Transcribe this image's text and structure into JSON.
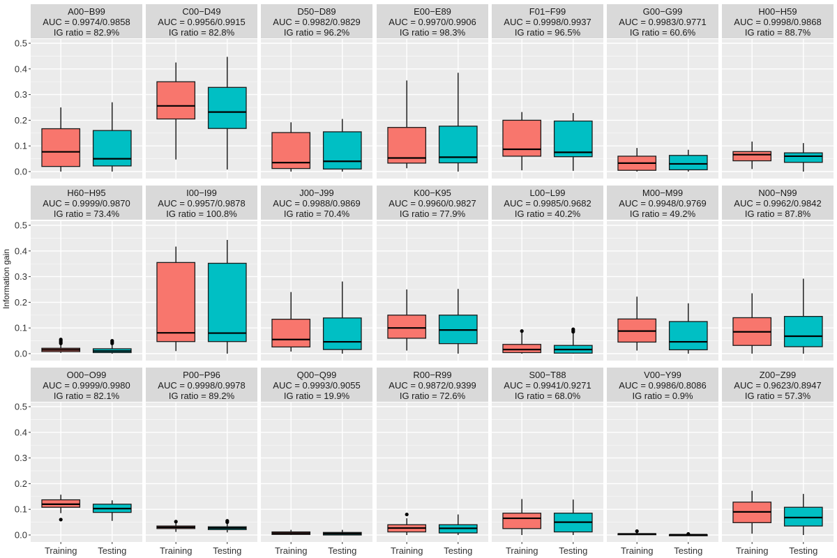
{
  "chart_data": {
    "type": "boxplot",
    "title": "",
    "xlabel": "",
    "ylabel": "Information gain",
    "ylim": [
      0,
      0.5
    ],
    "yticks": [
      "0.0",
      "0.1",
      "0.2",
      "0.3",
      "0.4",
      "0.5"
    ],
    "ytick_values": [
      0,
      0.1,
      0.2,
      0.3,
      0.4,
      0.5
    ],
    "categories": [
      "Training",
      "Testing"
    ],
    "colors": {
      "Training": "#F8766D",
      "Testing": "#00BFC4",
      "panel_bg": "#EBEBEB",
      "strip_bg": "#D9D9D9",
      "grid": "#FFFFFF"
    },
    "grid": true,
    "layout": {
      "rows": 3,
      "cols": 7
    },
    "panels": [
      {
        "name": "A00−B99",
        "auc": "AUC = 0.9974/0.9858",
        "ig": "IG ratio = 82.9%",
        "boxes": [
          {
            "min": 0.0,
            "q1": 0.02,
            "median": 0.077,
            "q3": 0.167,
            "max": 0.25,
            "outliers": []
          },
          {
            "min": 0.0,
            "q1": 0.022,
            "median": 0.05,
            "q3": 0.16,
            "max": 0.27,
            "outliers": []
          }
        ]
      },
      {
        "name": "C00−D49",
        "auc": "AUC = 0.9956/0.9915",
        "ig": "IG ratio = 82.8%",
        "boxes": [
          {
            "min": 0.047,
            "q1": 0.205,
            "median": 0.256,
            "q3": 0.35,
            "max": 0.425,
            "outliers": []
          },
          {
            "min": 0.008,
            "q1": 0.168,
            "median": 0.232,
            "q3": 0.328,
            "max": 0.447,
            "outliers": []
          }
        ]
      },
      {
        "name": "D50−D89",
        "auc": "AUC = 0.9982/0.9829",
        "ig": "IG ratio = 96.2%",
        "boxes": [
          {
            "min": 0.0,
            "q1": 0.012,
            "median": 0.035,
            "q3": 0.152,
            "max": 0.192,
            "outliers": []
          },
          {
            "min": 0.0,
            "q1": 0.01,
            "median": 0.04,
            "q3": 0.155,
            "max": 0.205,
            "outliers": []
          }
        ]
      },
      {
        "name": "E00−E89",
        "auc": "AUC = 0.9970/0.9906",
        "ig": "IG ratio = 98.3%",
        "boxes": [
          {
            "min": 0.013,
            "q1": 0.033,
            "median": 0.053,
            "q3": 0.172,
            "max": 0.355,
            "outliers": []
          },
          {
            "min": 0.0,
            "q1": 0.034,
            "median": 0.056,
            "q3": 0.177,
            "max": 0.385,
            "outliers": []
          }
        ]
      },
      {
        "name": "F01−F99",
        "auc": "AUC = 0.9998/0.9937",
        "ig": "IG ratio = 96.5%",
        "boxes": [
          {
            "min": 0.005,
            "q1": 0.06,
            "median": 0.087,
            "q3": 0.2,
            "max": 0.232,
            "outliers": []
          },
          {
            "min": 0.003,
            "q1": 0.058,
            "median": 0.075,
            "q3": 0.197,
            "max": 0.228,
            "outliers": []
          }
        ]
      },
      {
        "name": "G00−G99",
        "auc": "AUC = 0.9983/0.9771",
        "ig": "IG ratio = 60.6%",
        "boxes": [
          {
            "min": 0.0,
            "q1": 0.005,
            "median": 0.033,
            "q3": 0.06,
            "max": 0.092,
            "outliers": []
          },
          {
            "min": 0.0,
            "q1": 0.007,
            "median": 0.03,
            "q3": 0.063,
            "max": 0.085,
            "outliers": []
          }
        ]
      },
      {
        "name": "H00−H59",
        "auc": "AUC = 0.9998/0.9868",
        "ig": "IG ratio = 88.7%",
        "boxes": [
          {
            "min": 0.01,
            "q1": 0.042,
            "median": 0.066,
            "q3": 0.078,
            "max": 0.117,
            "outliers": []
          },
          {
            "min": 0.0,
            "q1": 0.036,
            "median": 0.06,
            "q3": 0.073,
            "max": 0.111,
            "outliers": []
          }
        ]
      },
      {
        "name": "H60−H95",
        "auc": "AUC = 0.9999/0.9870",
        "ig": "IG ratio = 73.4%",
        "boxes": [
          {
            "min": 0.003,
            "q1": 0.008,
            "median": 0.015,
            "q3": 0.021,
            "max": 0.035,
            "outliers": [
              0.04,
              0.045,
              0.05,
              0.055
            ]
          },
          {
            "min": 0.0,
            "q1": 0.004,
            "median": 0.01,
            "q3": 0.019,
            "max": 0.033,
            "outliers": [
              0.04,
              0.045,
              0.05
            ]
          }
        ]
      },
      {
        "name": "I00−I99",
        "auc": "AUC = 0.9957/0.9878",
        "ig": "IG ratio = 100.8%",
        "boxes": [
          {
            "min": 0.01,
            "q1": 0.047,
            "median": 0.081,
            "q3": 0.355,
            "max": 0.417,
            "outliers": []
          },
          {
            "min": 0.0,
            "q1": 0.047,
            "median": 0.08,
            "q3": 0.352,
            "max": 0.443,
            "outliers": []
          }
        ]
      },
      {
        "name": "J00−J99",
        "auc": "AUC = 0.9988/0.9869",
        "ig": "IG ratio = 70.4%",
        "boxes": [
          {
            "min": 0.008,
            "q1": 0.026,
            "median": 0.055,
            "q3": 0.134,
            "max": 0.24,
            "outliers": []
          },
          {
            "min": 0.0,
            "q1": 0.016,
            "median": 0.046,
            "q3": 0.139,
            "max": 0.281,
            "outliers": []
          }
        ]
      },
      {
        "name": "K00−K95",
        "auc": "AUC = 0.9960/0.9827",
        "ig": "IG ratio = 77.9%",
        "boxes": [
          {
            "min": 0.012,
            "q1": 0.06,
            "median": 0.1,
            "q3": 0.15,
            "max": 0.25,
            "outliers": []
          },
          {
            "min": 0.0,
            "q1": 0.039,
            "median": 0.092,
            "q3": 0.15,
            "max": 0.252,
            "outliers": []
          }
        ]
      },
      {
        "name": "L00−L99",
        "auc": "AUC = 0.9985/0.9682",
        "ig": "IG ratio = 40.2%",
        "boxes": [
          {
            "min": 0.0,
            "q1": 0.004,
            "median": 0.016,
            "q3": 0.036,
            "max": 0.085,
            "outliers": [
              0.088
            ]
          },
          {
            "min": 0.0,
            "q1": 0.002,
            "median": 0.016,
            "q3": 0.032,
            "max": 0.08,
            "outliers": [
              0.085,
              0.09,
              0.095
            ]
          }
        ]
      },
      {
        "name": "M00−M99",
        "auc": "AUC = 0.9948/0.9769",
        "ig": "IG ratio = 49.2%",
        "boxes": [
          {
            "min": 0.012,
            "q1": 0.045,
            "median": 0.088,
            "q3": 0.135,
            "max": 0.222,
            "outliers": []
          },
          {
            "min": 0.0,
            "q1": 0.015,
            "median": 0.046,
            "q3": 0.125,
            "max": 0.196,
            "outliers": []
          }
        ]
      },
      {
        "name": "N00−N99",
        "auc": "AUC = 0.9962/0.9842",
        "ig": "IG ratio = 87.8%",
        "boxes": [
          {
            "min": 0.0,
            "q1": 0.032,
            "median": 0.085,
            "q3": 0.14,
            "max": 0.235,
            "outliers": []
          },
          {
            "min": 0.0,
            "q1": 0.027,
            "median": 0.068,
            "q3": 0.145,
            "max": 0.292,
            "outliers": []
          }
        ]
      },
      {
        "name": "O00−O99",
        "auc": "AUC = 0.9999/0.9980",
        "ig": "IG ratio = 82.1%",
        "boxes": [
          {
            "min": 0.085,
            "q1": 0.108,
            "median": 0.12,
            "q3": 0.137,
            "max": 0.157,
            "outliers": [
              0.06
            ]
          },
          {
            "min": 0.055,
            "q1": 0.088,
            "median": 0.103,
            "q3": 0.12,
            "max": 0.135,
            "outliers": []
          }
        ]
      },
      {
        "name": "P00−P96",
        "auc": "AUC = 0.9998/0.9978",
        "ig": "IG ratio = 89.2%",
        "boxes": [
          {
            "min": 0.012,
            "q1": 0.025,
            "median": 0.03,
            "q3": 0.035,
            "max": 0.045,
            "outliers": [
              0.052
            ]
          },
          {
            "min": 0.01,
            "q1": 0.021,
            "median": 0.027,
            "q3": 0.032,
            "max": 0.045,
            "outliers": [
              0.05,
              0.055
            ]
          }
        ]
      },
      {
        "name": "Q00−Q99",
        "auc": "AUC = 0.9993/0.9055",
        "ig": "IG ratio = 19.9%",
        "boxes": [
          {
            "min": 0.0,
            "q1": 0.002,
            "median": 0.007,
            "q3": 0.012,
            "max": 0.02,
            "outliers": []
          },
          {
            "min": 0.0,
            "q1": 0.0,
            "median": 0.005,
            "q3": 0.01,
            "max": 0.02,
            "outliers": []
          }
        ]
      },
      {
        "name": "R00−R99",
        "auc": "AUC = 0.9872/0.9399",
        "ig": "IG ratio = 72.6%",
        "boxes": [
          {
            "min": 0.0,
            "q1": 0.012,
            "median": 0.027,
            "q3": 0.04,
            "max": 0.065,
            "outliers": [
              0.08
            ]
          },
          {
            "min": 0.0,
            "q1": 0.008,
            "median": 0.026,
            "q3": 0.04,
            "max": 0.08,
            "outliers": []
          }
        ]
      },
      {
        "name": "S00−T88",
        "auc": "AUC = 0.9941/0.9271",
        "ig": "IG ratio = 68.0%",
        "boxes": [
          {
            "min": 0.0,
            "q1": 0.025,
            "median": 0.065,
            "q3": 0.085,
            "max": 0.14,
            "outliers": []
          },
          {
            "min": 0.0,
            "q1": 0.012,
            "median": 0.05,
            "q3": 0.085,
            "max": 0.138,
            "outliers": []
          }
        ]
      },
      {
        "name": "V00−Y99",
        "auc": "AUC = 0.9986/0.8086",
        "ig": "IG ratio = 0.9%",
        "boxes": [
          {
            "min": 0.0,
            "q1": 0.003,
            "median": 0.004,
            "q3": 0.005,
            "max": 0.01,
            "outliers": [
              0.015
            ]
          },
          {
            "min": 0.0,
            "q1": 0.0,
            "median": 0.001,
            "q3": 0.001,
            "max": 0.003,
            "outliers": [
              0.004
            ]
          }
        ]
      },
      {
        "name": "Z00−Z99",
        "auc": "AUC = 0.9623/0.8947",
        "ig": "IG ratio = 57.3%",
        "boxes": [
          {
            "min": 0.005,
            "q1": 0.048,
            "median": 0.09,
            "q3": 0.128,
            "max": 0.172,
            "outliers": []
          },
          {
            "min": 0.0,
            "q1": 0.035,
            "median": 0.068,
            "q3": 0.108,
            "max": 0.16,
            "outliers": []
          }
        ]
      }
    ]
  }
}
